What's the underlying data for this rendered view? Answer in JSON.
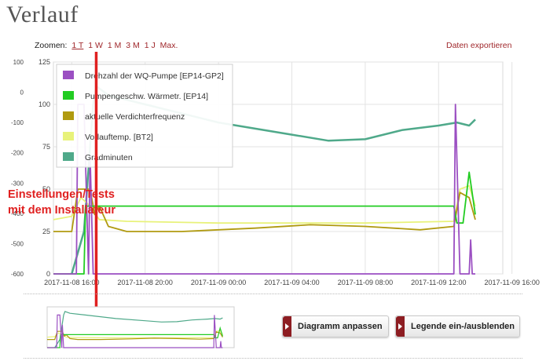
{
  "page": {
    "title": "Verlauf"
  },
  "toolbar": {
    "zoom_label": "Zoomen:",
    "zoom_options": [
      "1 T",
      "1 W",
      "1 M",
      "3 M",
      "1 J",
      "Max."
    ],
    "active_zoom": "1 T",
    "export_label": "Daten exportieren"
  },
  "buttons": {
    "adjust": "Diagramm anpassen",
    "legend": "Legende ein-/ausblenden"
  },
  "annotation": {
    "line1": "Einstellungen/Tests",
    "line2": "mit dem Installateur",
    "color": "#e02020"
  },
  "chart_data": {
    "type": "line",
    "title": "",
    "xlabel": "",
    "ylabel": "",
    "x_ticks": [
      "2017-11-08 16:00",
      "2017-11-08 20:00",
      "2017-11-09 00:00",
      "2017-11-09 04:00",
      "2017-11-09 08:00",
      "2017-11-09 12:00",
      "2017-11-09 16:00"
    ],
    "x_range": [
      "2017-11-08 15:00",
      "2017-11-09 15:30"
    ],
    "y_left_ticks": [
      0,
      25,
      50,
      75,
      100,
      125
    ],
    "y_left_range": [
      0,
      125
    ],
    "y_right_ticks": [
      -600,
      -500,
      -400,
      -300,
      -200,
      -100,
      0,
      100
    ],
    "y_right_range": [
      -600,
      100
    ],
    "grid": true,
    "legend_position": "top-left",
    "annotation_marker_x": "2017-11-08 17:20",
    "series": [
      {
        "name": "Drehzahl der WQ-Pumpe [EP14-GP2]",
        "color": "#9b4fc2",
        "axis": "left",
        "points": [
          [
            "2017-11-08 15:00",
            0
          ],
          [
            "2017-11-08 16:15",
            0
          ],
          [
            "2017-11-08 16:20",
            100
          ],
          [
            "2017-11-08 16:40",
            100
          ],
          [
            "2017-11-08 16:55",
            0
          ],
          [
            "2017-11-08 17:00",
            70
          ],
          [
            "2017-11-08 17:10",
            0
          ],
          [
            "2017-11-09 12:50",
            0
          ],
          [
            "2017-11-09 12:55",
            100
          ],
          [
            "2017-11-09 13:10",
            0
          ],
          [
            "2017-11-09 13:40",
            0
          ],
          [
            "2017-11-09 13:45",
            20
          ],
          [
            "2017-11-09 13:50",
            0
          ],
          [
            "2017-11-09 14:00",
            0
          ]
        ]
      },
      {
        "name": "Pumpengeschw. Wärmetr. [EP14]",
        "color": "#22cc22",
        "axis": "left",
        "points": [
          [
            "2017-11-08 15:00",
            0
          ],
          [
            "2017-11-08 16:40",
            0
          ],
          [
            "2017-11-08 16:45",
            40
          ],
          [
            "2017-11-08 17:10",
            40
          ],
          [
            "2017-11-08 17:30",
            40
          ],
          [
            "2017-11-09 12:50",
            40
          ],
          [
            "2017-11-09 13:00",
            30
          ],
          [
            "2017-11-09 13:20",
            30
          ],
          [
            "2017-11-09 13:40",
            60
          ],
          [
            "2017-11-09 14:00",
            35
          ]
        ]
      },
      {
        "name": "aktuelle Verdichterfrequenz",
        "color": "#b09a10",
        "axis": "left",
        "points": [
          [
            "2017-11-08 15:00",
            25
          ],
          [
            "2017-11-08 16:00",
            25
          ],
          [
            "2017-11-08 16:20",
            50
          ],
          [
            "2017-11-08 17:00",
            50
          ],
          [
            "2017-11-08 17:15",
            35
          ],
          [
            "2017-11-08 17:30",
            40
          ],
          [
            "2017-11-08 18:00",
            28
          ],
          [
            "2017-11-08 19:00",
            25
          ],
          [
            "2017-11-08 22:00",
            25
          ],
          [
            "2017-11-09 02:00",
            27
          ],
          [
            "2017-11-09 05:00",
            29
          ],
          [
            "2017-11-09 08:00",
            28
          ],
          [
            "2017-11-09 11:00",
            26
          ],
          [
            "2017-11-09 12:50",
            28
          ],
          [
            "2017-11-09 13:10",
            48
          ],
          [
            "2017-11-09 13:40",
            45
          ],
          [
            "2017-11-09 14:00",
            32
          ]
        ]
      },
      {
        "name": "Vorlauftemp. [BT2]",
        "color": "#e8f27a",
        "axis": "left",
        "points": [
          [
            "2017-11-08 15:00",
            32
          ],
          [
            "2017-11-08 16:00",
            34
          ],
          [
            "2017-11-08 16:30",
            45
          ],
          [
            "2017-11-08 17:00",
            40
          ],
          [
            "2017-11-08 17:30",
            32
          ],
          [
            "2017-11-08 19:00",
            31
          ],
          [
            "2017-11-09 00:00",
            30
          ],
          [
            "2017-11-09 08:00",
            30
          ],
          [
            "2017-11-09 12:50",
            31
          ],
          [
            "2017-11-09 13:10",
            50
          ],
          [
            "2017-11-09 13:40",
            52
          ],
          [
            "2017-11-09 14:00",
            40
          ]
        ]
      },
      {
        "name": "Gradminuten",
        "color": "#4fa98a",
        "axis": "right",
        "points": [
          [
            "2017-11-08 16:00",
            -600
          ],
          [
            "2017-11-08 16:40",
            -460
          ],
          [
            "2017-11-08 17:10",
            -40
          ],
          [
            "2017-11-08 17:20",
            20
          ],
          [
            "2017-11-08 18:00",
            -10
          ],
          [
            "2017-11-08 20:00",
            -40
          ],
          [
            "2017-11-09 00:00",
            -100
          ],
          [
            "2017-11-09 04:00",
            -140
          ],
          [
            "2017-11-09 06:00",
            -160
          ],
          [
            "2017-11-09 08:00",
            -155
          ],
          [
            "2017-11-09 10:00",
            -125
          ],
          [
            "2017-11-09 12:00",
            -110
          ],
          [
            "2017-11-09 13:00",
            -100
          ],
          [
            "2017-11-09 13:40",
            -110
          ],
          [
            "2017-11-09 14:00",
            -90
          ]
        ]
      }
    ]
  }
}
